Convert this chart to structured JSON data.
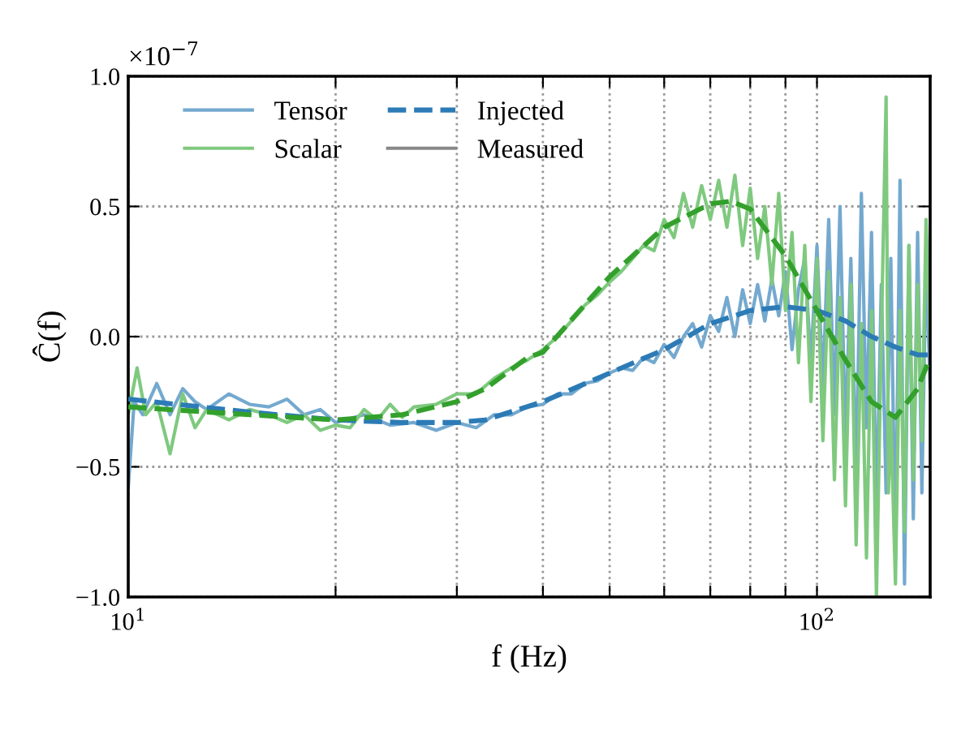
{
  "chart_data": {
    "type": "line",
    "xlabel": "f (Hz)",
    "ylabel": "Ĉ(f)",
    "log": "x",
    "xlim": [
      10,
      146
    ],
    "xticks": [
      {
        "value": 10,
        "label": "10$^{1}$"
      },
      {
        "value": 20,
        "label": null
      },
      {
        "value": 30,
        "label": null
      },
      {
        "value": 40,
        "label": null
      },
      {
        "value": 50,
        "label": null
      },
      {
        "value": 60,
        "label": null
      },
      {
        "value": 70,
        "label": null
      },
      {
        "value": 80,
        "label": null
      },
      {
        "value": 90,
        "label": null
      },
      {
        "value": 100,
        "label": "10$^{2}$"
      }
    ],
    "ylim": [
      -1.0,
      1.0
    ],
    "yticks": [
      {
        "value": -1.0,
        "label": "−1.0"
      },
      {
        "value": -0.5,
        "label": "−0.5"
      },
      {
        "value": 0.0,
        "label": "0.0"
      },
      {
        "value": 0.5,
        "label": "0.5"
      },
      {
        "value": 1.0,
        "label": "1.0"
      }
    ],
    "grid": true,
    "legend": "top left",
    "annotations": [
      "×10$^{−7}$",
      "Measured"
    ],
    "series": [
      {
        "name": "Tensor",
        "color": "#74a9cf",
        "line_style": "solid",
        "x": [
          10,
          10.2,
          10.5,
          11,
          11.5,
          12,
          12.5,
          13,
          14,
          15,
          16,
          17,
          18,
          19,
          20,
          22,
          24,
          26,
          28,
          30,
          32,
          34,
          36,
          38,
          40,
          42,
          44,
          46,
          48,
          50,
          52,
          54,
          56,
          58,
          60,
          62,
          64,
          66,
          68,
          70,
          72,
          74,
          76,
          78,
          80,
          82,
          84,
          86,
          88,
          90,
          92,
          94,
          96,
          98,
          100,
          102,
          104,
          106,
          108,
          110,
          112,
          114,
          116,
          118,
          120,
          122,
          124,
          126,
          128,
          130,
          132,
          134,
          136,
          138,
          140,
          142,
          144,
          146
        ],
        "values": [
          -0.58,
          -0.25,
          -0.3,
          -0.18,
          -0.3,
          -0.2,
          -0.25,
          -0.28,
          -0.22,
          -0.26,
          -0.27,
          -0.24,
          -0.3,
          -0.28,
          -0.33,
          -0.3,
          -0.34,
          -0.33,
          -0.36,
          -0.33,
          -0.35,
          -0.3,
          -0.3,
          -0.27,
          -0.26,
          -0.22,
          -0.22,
          -0.18,
          -0.17,
          -0.14,
          -0.12,
          -0.13,
          -0.08,
          -0.1,
          -0.03,
          -0.08,
          0.0,
          0.05,
          -0.04,
          0.08,
          0.02,
          0.15,
          0.0,
          0.18,
          0.05,
          0.2,
          0.06,
          0.22,
          0.08,
          0.25,
          -0.05,
          0.18,
          0.3,
          -0.1,
          0.35,
          -0.2,
          0.45,
          -0.3,
          0.5,
          -0.4,
          0.3,
          -0.55,
          0.55,
          -0.35,
          0.4,
          -0.7,
          0.2,
          -0.6,
          0.3,
          -0.85,
          0.6,
          -0.95,
          0.35,
          -0.7,
          0.4,
          -0.6,
          0.3,
          -0.2
        ]
      },
      {
        "name": "Scalar",
        "color": "#7fc97f",
        "line_style": "solid",
        "x": [
          10,
          10.3,
          10.6,
          11,
          11.5,
          12,
          12.5,
          13,
          14,
          15,
          16,
          17,
          18,
          19,
          20,
          21,
          22,
          23,
          24,
          25,
          26,
          28,
          30,
          32,
          34,
          36,
          38,
          40,
          42,
          44,
          46,
          48,
          50,
          52,
          54,
          56,
          58,
          60,
          62,
          64,
          66,
          68,
          70,
          72,
          74,
          76,
          78,
          80,
          82,
          84,
          86,
          88,
          90,
          92,
          94,
          96,
          98,
          100,
          102,
          104,
          106,
          108,
          110,
          112,
          114,
          116,
          118,
          120,
          122,
          124,
          126,
          127,
          128,
          130,
          132,
          134,
          136,
          138,
          140,
          142,
          144,
          146
        ],
        "values": [
          -0.3,
          -0.12,
          -0.3,
          -0.25,
          -0.45,
          -0.22,
          -0.35,
          -0.28,
          -0.32,
          -0.28,
          -0.3,
          -0.33,
          -0.3,
          -0.36,
          -0.34,
          -0.35,
          -0.28,
          -0.32,
          -0.26,
          -0.31,
          -0.27,
          -0.26,
          -0.22,
          -0.22,
          -0.16,
          -0.12,
          -0.09,
          -0.05,
          0.0,
          0.06,
          0.12,
          0.16,
          0.21,
          0.25,
          0.3,
          0.35,
          0.33,
          0.45,
          0.38,
          0.55,
          0.42,
          0.58,
          0.45,
          0.6,
          0.42,
          0.62,
          0.35,
          0.57,
          0.3,
          0.5,
          0.2,
          0.55,
          0.1,
          0.4,
          -0.1,
          0.35,
          -0.25,
          0.3,
          -0.4,
          0.25,
          -0.55,
          0.15,
          -0.65,
          0.2,
          -0.8,
          0.05,
          -0.85,
          0.1,
          -1.0,
          0.0,
          0.92,
          -0.6,
          -0.3,
          -0.95,
          0.1,
          -0.75,
          0.35,
          -0.55,
          0.2,
          -0.4,
          0.45,
          0.0
        ]
      },
      {
        "name": "Injected",
        "color": "#2c7bb6",
        "line_style": "dashed",
        "x": [
          10,
          15,
          20,
          25,
          30,
          33,
          40,
          50,
          60,
          70,
          80,
          90,
          100,
          110,
          120,
          130,
          140,
          146
        ],
        "values": [
          -0.24,
          -0.29,
          -0.32,
          -0.33,
          -0.33,
          -0.32,
          -0.25,
          -0.14,
          -0.05,
          0.05,
          0.1,
          0.115,
          0.1,
          0.06,
          0.0,
          -0.04,
          -0.07,
          -0.07
        ]
      },
      {
        "color": "#33a02c",
        "line_style": "dashed",
        "x": [
          10,
          15,
          20,
          25,
          30,
          33,
          38,
          40,
          50,
          60,
          70,
          75,
          80,
          90,
          100,
          110,
          120,
          130,
          140,
          146
        ],
        "values": [
          -0.27,
          -0.3,
          -0.32,
          -0.3,
          -0.25,
          -0.2,
          -0.08,
          -0.06,
          0.23,
          0.42,
          0.51,
          0.52,
          0.49,
          0.31,
          0.1,
          -0.09,
          -0.25,
          -0.31,
          -0.2,
          -0.08
        ]
      }
    ]
  }
}
